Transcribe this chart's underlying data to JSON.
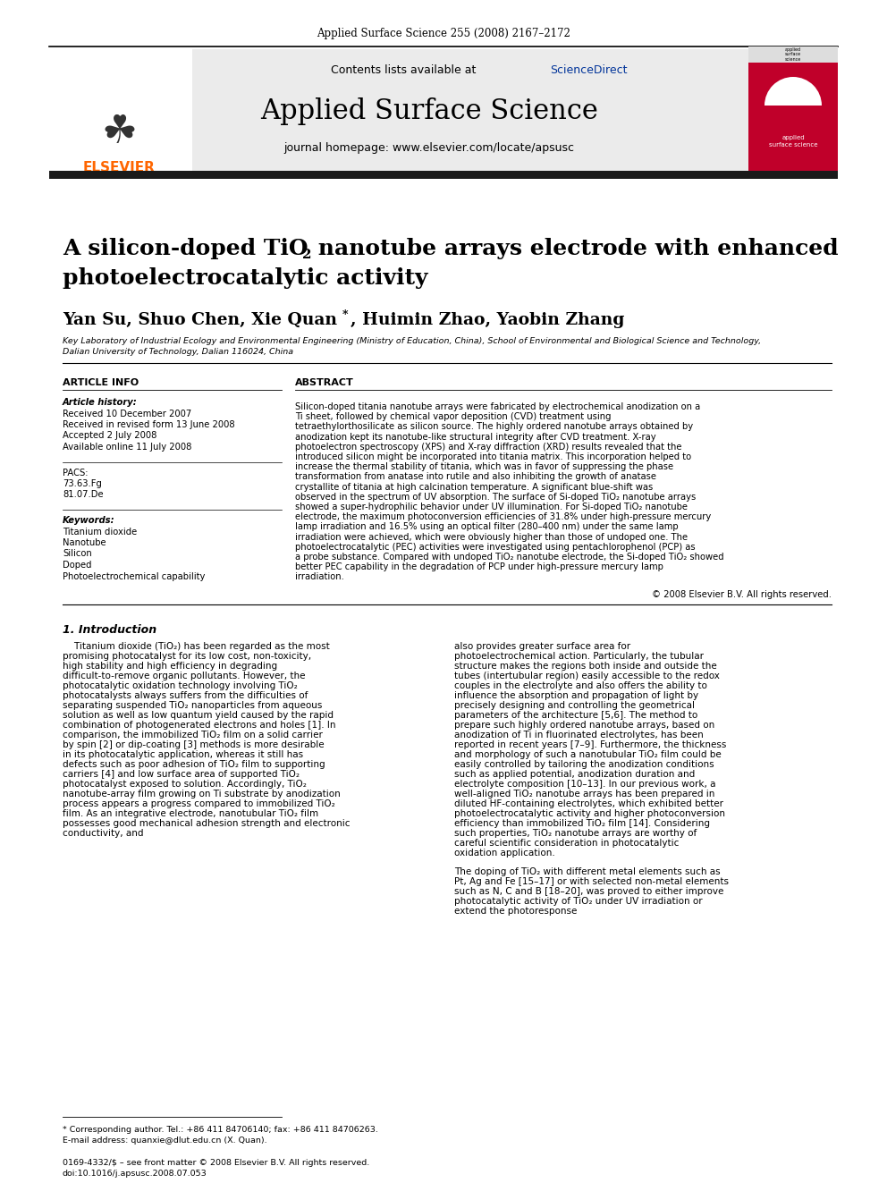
{
  "journal_header": "Applied Surface Science 255 (2008) 2167–2172",
  "sciencedirect_color": "#003399",
  "journal_name": "Applied Surface Science",
  "journal_homepage": "journal homepage: www.elsevier.com/locate/apsusc",
  "article_info_label": "ARTICLE INFO",
  "abstract_label": "ABSTRACT",
  "article_history_label": "Article history:",
  "received1": "Received 10 December 2007",
  "received2": "Received in revised form 13 June 2008",
  "accepted": "Accepted 2 July 2008",
  "available": "Available online 11 July 2008",
  "pacs_label": "PACS:",
  "pacs1": "73.63.Fg",
  "pacs2": "81.07.De",
  "keywords_label": "Keywords:",
  "keyword1": "Titanium dioxide",
  "keyword2": "Nanotube",
  "keyword3": "Silicon",
  "keyword4": "Doped",
  "keyword5": "Photoelectrochemical capability",
  "abstract_text": "Silicon-doped titania nanotube arrays were fabricated by electrochemical anodization on a Ti sheet, followed by chemical vapor deposition (CVD) treatment using tetraethylorthosilicate as silicon source. The highly ordered nanotube arrays obtained by anodization kept its nanotube-like structural integrity after CVD treatment. X-ray photoelectron spectroscopy (XPS) and X-ray diffraction (XRD) results revealed that the introduced silicon might be incorporated into titania matrix. This incorporation helped to increase the thermal stability of titania, which was in favor of suppressing the phase transformation from anatase into rutile and also inhibiting the growth of anatase crystallite of titania at high calcination temperature. A significant blue-shift was observed in the spectrum of UV absorption. The surface of Si-doped TiO₂ nanotube arrays showed a super-hydrophilic behavior under UV illumination. For Si-doped TiO₂ nanotube electrode, the maximum photoconversion efficiencies of 31.8% under high-pressure mercury lamp irradiation and 16.5% using an optical filter (280–400 nm) under the same lamp irradiation were achieved, which were obviously higher than those of undoped one. The photoelectrocatalytic (PEC) activities were investigated using pentachlorophenol (PCP) as a probe substance. Compared with undoped TiO₂ nanotube electrode, the Si-doped TiO₂ showed better PEC capability in the degradation of PCP under high-pressure mercury lamp irradiation.",
  "copyright": "© 2008 Elsevier B.V. All rights reserved.",
  "section1_label": "1. Introduction",
  "affiliation": "Key Laboratory of Industrial Ecology and Environmental Engineering (Ministry of Education, China), School of Environmental and Biological Science and Technology,",
  "affiliation2": "Dalian University of Technology, Dalian 116024, China",
  "intro_col1": "Titanium dioxide (TiO₂) has been regarded as the most promising photocatalyst for its low cost, non-toxicity, high stability and high efficiency in degrading difficult-to-remove organic pollutants. However, the photocatalytic oxidation technology involving TiO₂ photocatalysts always suffers from the difficulties of separating suspended TiO₂ nanoparticles from aqueous solution as well as low quantum yield caused by the rapid combination of photogenerated electrons and holes [1]. In comparison, the immobilized TiO₂ film on a solid carrier by spin [2] or dip-coating [3] methods is more desirable in its photocatalytic application, whereas it still has defects such as poor adhesion of TiO₂ film to supporting carriers [4] and low surface area of supported TiO₂ photocatalyst exposed to solution. Accordingly, TiO₂ nanotube-array film growing on Ti substrate by anodization process appears a progress compared to immobilized TiO₂ film. As an integrative electrode, nanotubular TiO₂ film possesses good mechanical adhesion strength and electronic conductivity, and",
  "intro_col2": "also provides greater surface area for photoelectrochemical action. Particularly, the tubular structure makes the regions both inside and outside the tubes (intertubular region) easily accessible to the redox couples in the electrolyte and also offers the ability to influence the absorption and propagation of light by precisely designing and controlling the geometrical parameters of the architecture [5,6]. The method to prepare such highly ordered nanotube arrays, based on anodization of Ti in fluorinated electrolytes, has been reported in recent years [7–9]. Furthermore, the thickness and morphology of such a nanotubular TiO₂ film could be easily controlled by tailoring the anodization conditions such as applied potential, anodization duration and electrolyte composition [10–13]. In our previous work, a well-aligned TiO₂ nanotube arrays has been prepared in diluted HF-containing electrolytes, which exhibited better photoelectrocatalytic activity and higher photoconversion efficiency than immobilized TiO₂ film [14]. Considering such properties, TiO₂ nanotube arrays are worthy of careful scientific consideration in photocatalytic oxidation application.",
  "intro_col2b": "The doping of TiO₂ with different metal elements such as Pt, Ag and Fe [15–17] or with selected non-metal elements such as N, C and B [18–20], was proved to either improve photocatalytic activity of TiO₂ under UV irradiation or extend the photoresponse",
  "footnote_star": "* Corresponding author. Tel.: +86 411 84706140; fax: +86 411 84706263.",
  "footnote_email": "E-mail address: quanxie@dlut.edu.cn (X. Quan).",
  "bottom_issn": "0169-4332/$ – see front matter © 2008 Elsevier B.V. All rights reserved.",
  "bottom_doi": "doi:10.1016/j.apsusc.2008.07.053",
  "bg_color": "#ffffff",
  "black_bar_color": "#1a1a1a",
  "elsevier_orange": "#FF6600",
  "cover_red": "#c0002a"
}
